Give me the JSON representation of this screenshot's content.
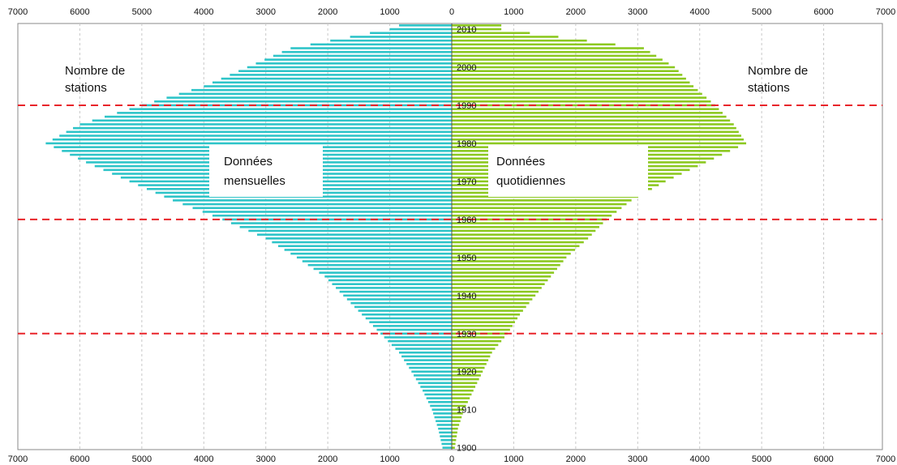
{
  "chart_data": {
    "type": "bar",
    "orientation": "horizontal-butterfly",
    "axis": {
      "xlim_left": [
        7000,
        0
      ],
      "xlim_right": [
        0,
        7000
      ],
      "tick_labels_left": [
        "7000",
        "6000",
        "5000",
        "4000",
        "3000",
        "2000",
        "1000",
        "0"
      ],
      "tick_labels_right": [
        "1000",
        "2000",
        "3000",
        "4000",
        "5000",
        "6000",
        "7000"
      ],
      "y_range": [
        1900,
        2011
      ],
      "year_labels": [
        "1900",
        "1910",
        "1920",
        "1930",
        "1940",
        "1950",
        "1960",
        "1970",
        "1980",
        "1990",
        "2000",
        "2010"
      ],
      "vertical_grid": true
    },
    "annotations": {
      "left_count_label": "Nombre de\nstations",
      "right_count_label": "Nombre de\nstations",
      "monthly_label": "Données\nmensuelles",
      "daily_label": "Données\nquotidiennes"
    },
    "reference_years": [
      1930,
      1960,
      1990
    ],
    "reference_color": "#e8242a",
    "series": [
      {
        "side": "left",
        "color": "#2ec4c8",
        "anchors": [
          [
            1900,
            150
          ],
          [
            1905,
            220
          ],
          [
            1910,
            320
          ],
          [
            1915,
            470
          ],
          [
            1920,
            650
          ],
          [
            1925,
            850
          ],
          [
            1930,
            1150
          ],
          [
            1935,
            1450
          ],
          [
            1940,
            1750
          ],
          [
            1945,
            2050
          ],
          [
            1950,
            2500
          ],
          [
            1955,
            3000
          ],
          [
            1960,
            3700
          ],
          [
            1965,
            4500
          ],
          [
            1970,
            5200
          ],
          [
            1975,
            5900
          ],
          [
            1980,
            6550
          ],
          [
            1985,
            6000
          ],
          [
            1990,
            5000
          ],
          [
            1995,
            4000
          ],
          [
            2000,
            3300
          ],
          [
            2005,
            2600
          ],
          [
            2010,
            1000
          ],
          [
            2011,
            850
          ]
        ]
      },
      {
        "side": "right",
        "color": "#8cc820",
        "anchors": [
          [
            1900,
            50
          ],
          [
            1905,
            100
          ],
          [
            1910,
            200
          ],
          [
            1915,
            350
          ],
          [
            1920,
            500
          ],
          [
            1925,
            650
          ],
          [
            1930,
            900
          ],
          [
            1935,
            1100
          ],
          [
            1940,
            1350
          ],
          [
            1945,
            1600
          ],
          [
            1950,
            1850
          ],
          [
            1955,
            2200
          ],
          [
            1960,
            2500
          ],
          [
            1965,
            2900
          ],
          [
            1970,
            3450
          ],
          [
            1975,
            4100
          ],
          [
            1980,
            4750
          ],
          [
            1985,
            4550
          ],
          [
            1990,
            4250
          ],
          [
            1995,
            3900
          ],
          [
            2000,
            3600
          ],
          [
            2005,
            3100
          ],
          [
            2010,
            800
          ],
          [
            2011,
            800
          ]
        ]
      }
    ]
  }
}
